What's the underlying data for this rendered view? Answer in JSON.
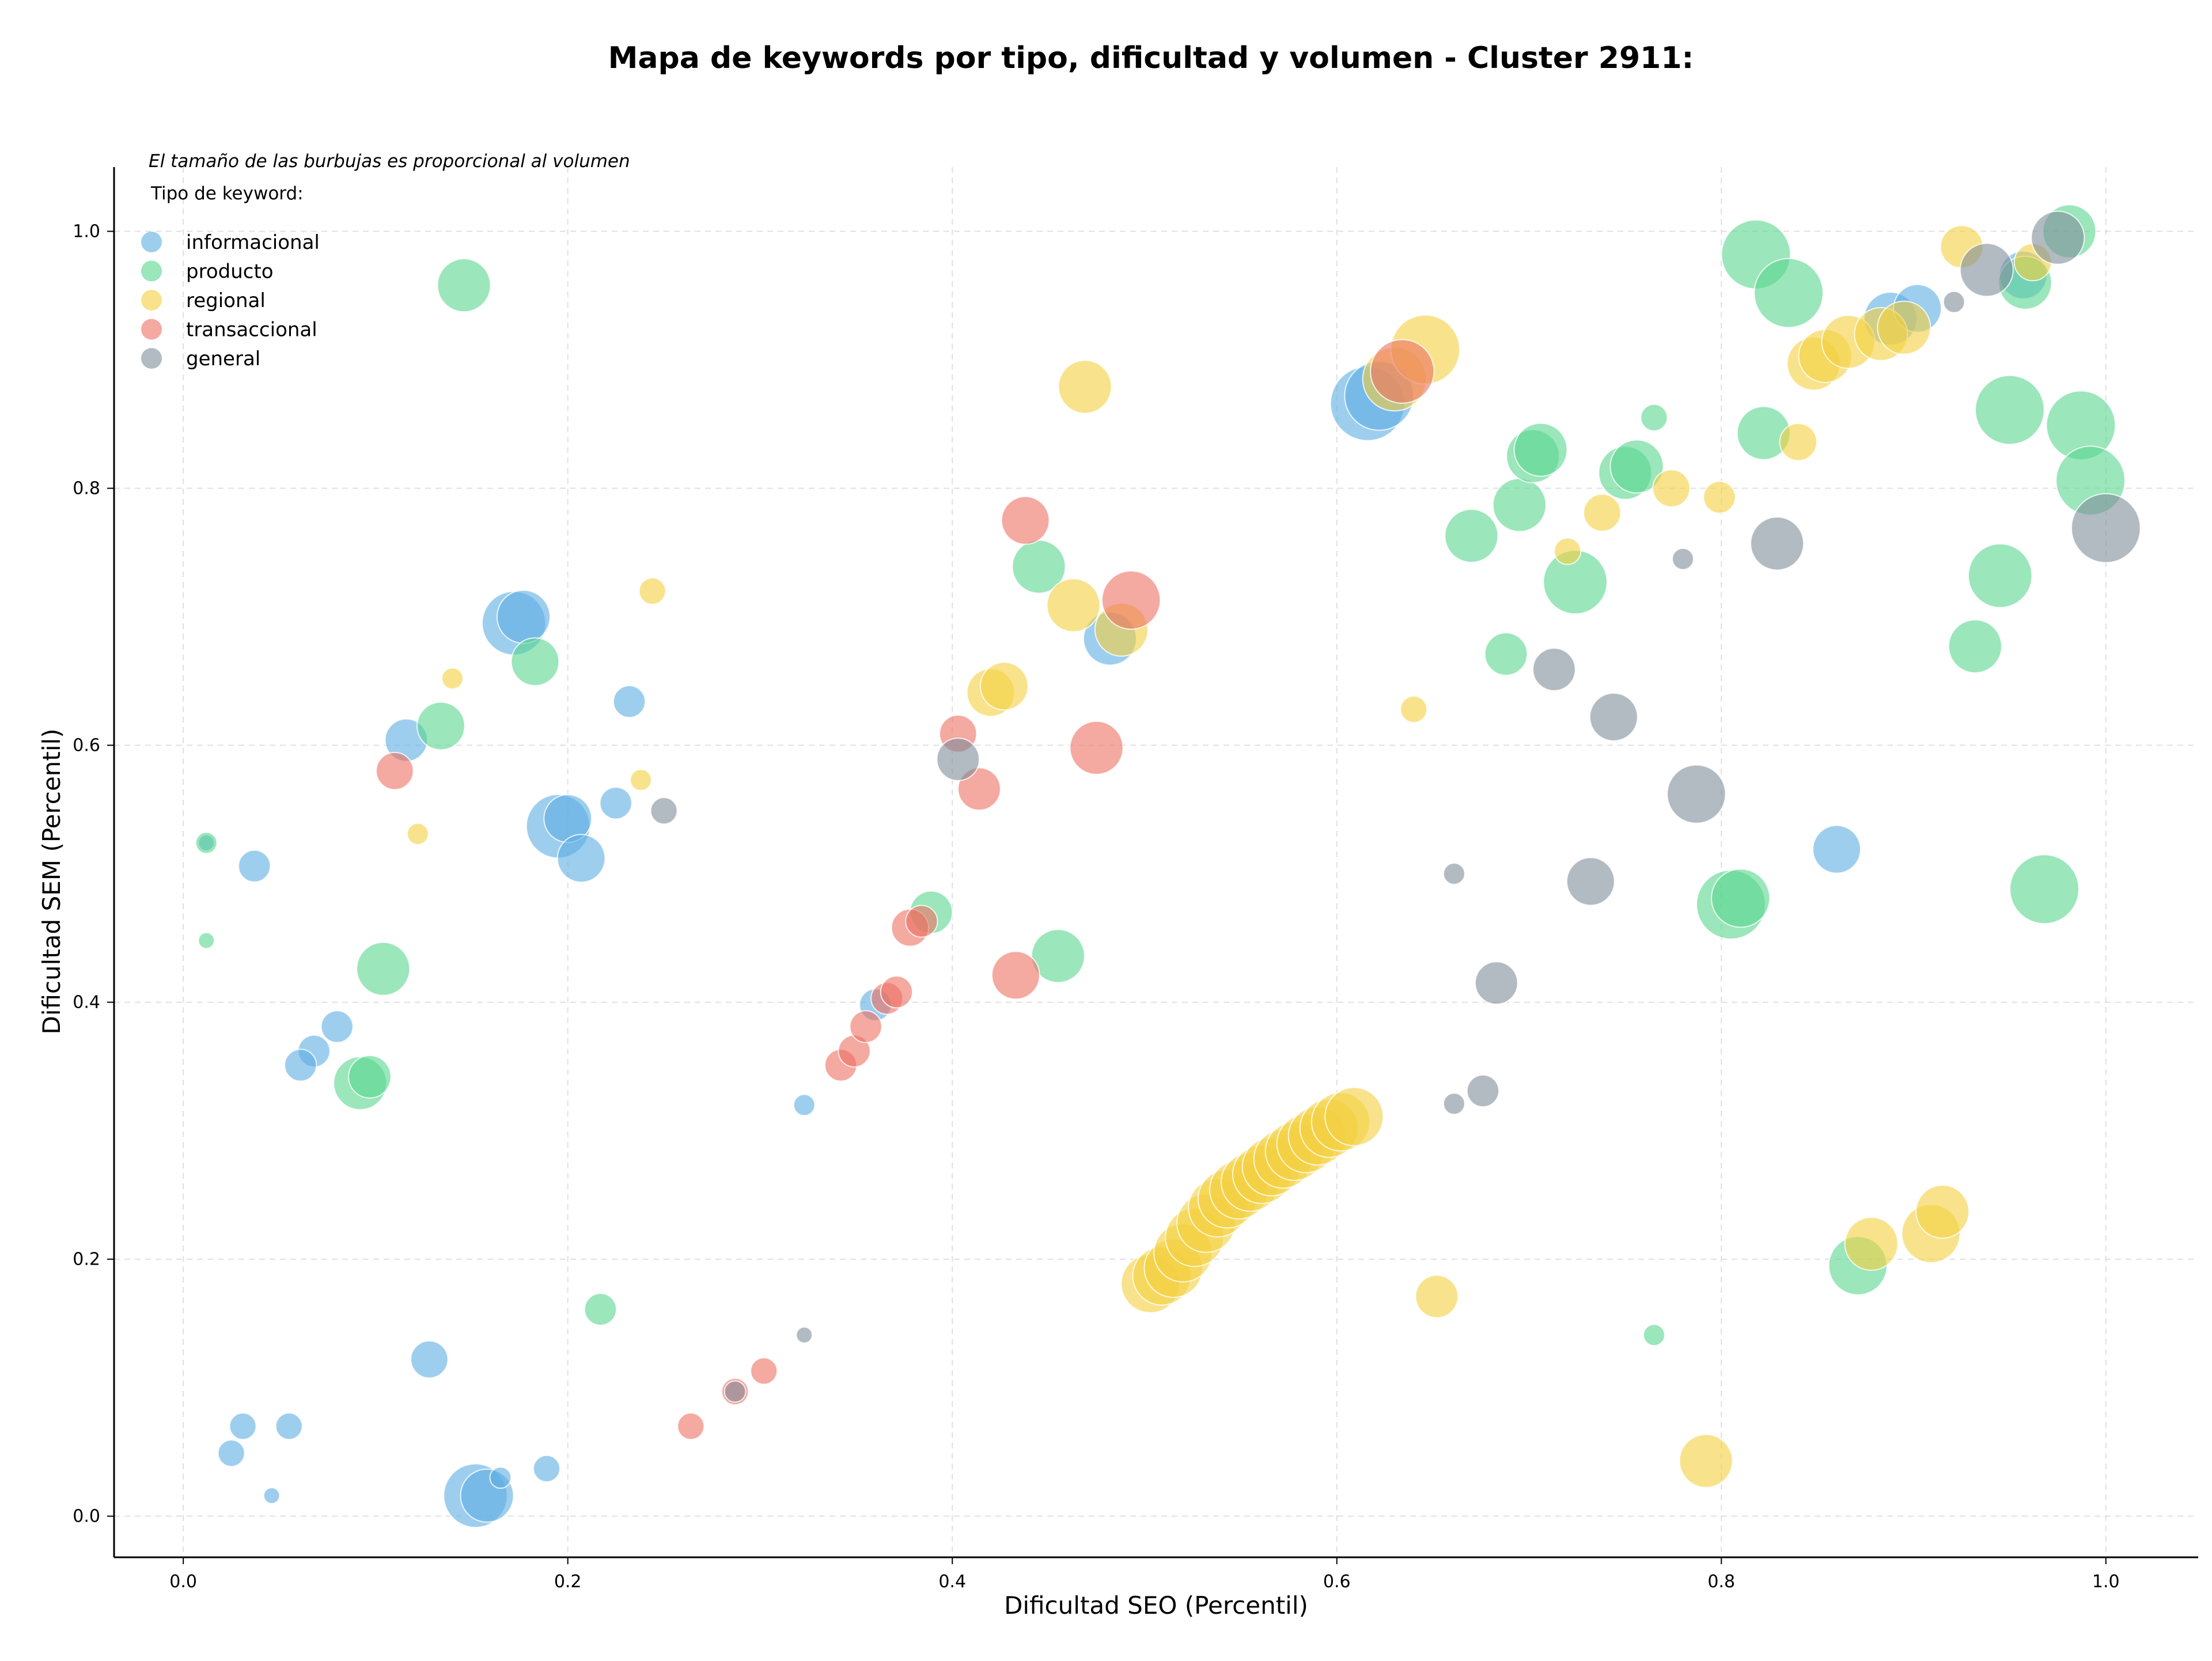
{
  "chart_data": {
    "type": "scatter",
    "title": "Mapa de keywords por tipo, dificultad y volumen - Cluster 2911:",
    "xlabel": "Dificultad SEO (Percentil)",
    "ylabel": "Dificultad SEM (Percentil)",
    "note": "El tamaño de las burbujas es proporcional al volumen",
    "legend_title": "Tipo de keyword:",
    "legend_position": "top-left",
    "xlim": [
      -0.036,
      1.048
    ],
    "ylim": [
      -0.032,
      1.05
    ],
    "xticks": [
      "0.0",
      "0.2",
      "0.4",
      "0.6",
      "0.8",
      "1.0"
    ],
    "yticks": [
      "0.0",
      "0.2",
      "0.4",
      "0.6",
      "0.8",
      "1.0"
    ],
    "grid": true,
    "series": [
      {
        "name": "informacional",
        "color": "#5DADE2",
        "points": [
          [
            0.012,
            0.524,
            3
          ],
          [
            0.037,
            0.506,
            6
          ],
          [
            0.08,
            0.381,
            6
          ],
          [
            0.068,
            0.362,
            6
          ],
          [
            0.061,
            0.351,
            6
          ],
          [
            0.031,
            0.07,
            5
          ],
          [
            0.055,
            0.07,
            5
          ],
          [
            0.025,
            0.049,
            5
          ],
          [
            0.046,
            0.016,
            3
          ],
          [
            0.128,
            0.122,
            7
          ],
          [
            0.152,
            0.016,
            12
          ],
          [
            0.158,
            0.016,
            10
          ],
          [
            0.165,
            0.03,
            4
          ],
          [
            0.189,
            0.037,
            5
          ],
          [
            0.116,
            0.604,
            8
          ],
          [
            0.172,
            0.695,
            12
          ],
          [
            0.177,
            0.7,
            10
          ],
          [
            0.195,
            0.537,
            12
          ],
          [
            0.2,
            0.543,
            9
          ],
          [
            0.207,
            0.512,
            9
          ],
          [
            0.225,
            0.555,
            6
          ],
          [
            0.232,
            0.634,
            6
          ],
          [
            0.323,
            0.32,
            4
          ],
          [
            0.36,
            0.398,
            6
          ],
          [
            0.482,
            0.683,
            10
          ],
          [
            0.616,
            0.866,
            14
          ],
          [
            0.622,
            0.872,
            13
          ],
          [
            0.86,
            0.519,
            9
          ],
          [
            0.888,
            0.932,
            10
          ],
          [
            0.902,
            0.94,
            9
          ],
          [
            0.957,
            0.966,
            9
          ]
        ]
      },
      {
        "name": "producto",
        "color": "#58D68D",
        "points": [
          [
            0.012,
            0.524,
            4
          ],
          [
            0.012,
            0.448,
            3
          ],
          [
            0.092,
            0.337,
            10
          ],
          [
            0.097,
            0.342,
            8
          ],
          [
            0.104,
            0.426,
            10
          ],
          [
            0.134,
            0.615,
            9
          ],
          [
            0.146,
            0.958,
            10
          ],
          [
            0.183,
            0.665,
            9
          ],
          [
            0.217,
            0.161,
            6
          ],
          [
            0.389,
            0.47,
            8
          ],
          [
            0.445,
            0.739,
            10
          ],
          [
            0.455,
            0.436,
            10
          ],
          [
            0.67,
            0.763,
            10
          ],
          [
            0.688,
            0.671,
            8
          ],
          [
            0.695,
            0.787,
            10
          ],
          [
            0.702,
            0.825,
            10
          ],
          [
            0.706,
            0.83,
            10
          ],
          [
            0.724,
            0.727,
            12
          ],
          [
            0.75,
            0.812,
            10
          ],
          [
            0.756,
            0.817,
            10
          ],
          [
            0.765,
            0.855,
            5
          ],
          [
            0.765,
            0.141,
            4
          ],
          [
            0.805,
            0.476,
            13
          ],
          [
            0.81,
            0.481,
            11
          ],
          [
            0.818,
            0.982,
            13
          ],
          [
            0.822,
            0.843,
            10
          ],
          [
            0.835,
            0.952,
            13
          ],
          [
            0.871,
            0.195,
            11
          ],
          [
            0.932,
            0.677,
            10
          ],
          [
            0.945,
            0.732,
            12
          ],
          [
            0.95,
            0.861,
            13
          ],
          [
            0.958,
            0.96,
            10
          ],
          [
            0.968,
            0.488,
            13
          ],
          [
            0.981,
            1.0,
            10
          ],
          [
            0.987,
            0.849,
            13
          ],
          [
            0.992,
            0.806,
            13
          ]
        ]
      },
      {
        "name": "regional",
        "color": "#F4D03F",
        "points": [
          [
            0.122,
            0.531,
            4
          ],
          [
            0.14,
            0.652,
            4
          ],
          [
            0.238,
            0.573,
            4
          ],
          [
            0.244,
            0.72,
            5
          ],
          [
            0.42,
            0.641,
            9
          ],
          [
            0.427,
            0.646,
            9
          ],
          [
            0.463,
            0.709,
            10
          ],
          [
            0.469,
            0.879,
            10
          ],
          [
            0.488,
            0.69,
            10
          ],
          [
            0.503,
            0.181,
            11
          ],
          [
            0.509,
            0.187,
            11
          ],
          [
            0.515,
            0.193,
            11
          ],
          [
            0.52,
            0.205,
            11
          ],
          [
            0.526,
            0.217,
            11
          ],
          [
            0.532,
            0.228,
            11
          ],
          [
            0.538,
            0.24,
            11
          ],
          [
            0.543,
            0.247,
            11
          ],
          [
            0.549,
            0.254,
            11
          ],
          [
            0.555,
            0.26,
            11
          ],
          [
            0.561,
            0.266,
            11
          ],
          [
            0.566,
            0.272,
            11
          ],
          [
            0.572,
            0.278,
            11
          ],
          [
            0.578,
            0.284,
            11
          ],
          [
            0.584,
            0.29,
            11
          ],
          [
            0.59,
            0.296,
            11
          ],
          [
            0.596,
            0.302,
            11
          ],
          [
            0.602,
            0.307,
            11
          ],
          [
            0.609,
            0.311,
            11
          ],
          [
            0.63,
            0.885,
            12
          ],
          [
            0.646,
            0.908,
            13
          ],
          [
            0.64,
            0.628,
            5
          ],
          [
            0.652,
            0.171,
            8
          ],
          [
            0.72,
            0.751,
            5
          ],
          [
            0.738,
            0.781,
            7
          ],
          [
            0.774,
            0.8,
            7
          ],
          [
            0.792,
            0.043,
            10
          ],
          [
            0.799,
            0.793,
            6
          ],
          [
            0.84,
            0.836,
            7
          ],
          [
            0.848,
            0.897,
            10
          ],
          [
            0.854,
            0.903,
            10
          ],
          [
            0.866,
            0.914,
            10
          ],
          [
            0.878,
            0.212,
            10
          ],
          [
            0.883,
            0.92,
            10
          ],
          [
            0.895,
            0.925,
            10
          ],
          [
            0.909,
            0.22,
            11
          ],
          [
            0.915,
            0.237,
            10
          ],
          [
            0.925,
            0.988,
            8
          ],
          [
            0.962,
            0.976,
            7
          ]
        ]
      },
      {
        "name": "transaccional",
        "color": "#EC7063",
        "points": [
          [
            0.11,
            0.58,
            7
          ],
          [
            0.264,
            0.07,
            5
          ],
          [
            0.287,
            0.097,
            5
          ],
          [
            0.302,
            0.113,
            5
          ],
          [
            0.342,
            0.351,
            6
          ],
          [
            0.349,
            0.362,
            6
          ],
          [
            0.355,
            0.381,
            6
          ],
          [
            0.366,
            0.403,
            6
          ],
          [
            0.371,
            0.408,
            6
          ],
          [
            0.378,
            0.458,
            7
          ],
          [
            0.384,
            0.463,
            6
          ],
          [
            0.403,
            0.609,
            7
          ],
          [
            0.414,
            0.566,
            8
          ],
          [
            0.433,
            0.421,
            9
          ],
          [
            0.438,
            0.775,
            9
          ],
          [
            0.475,
            0.598,
            10
          ],
          [
            0.493,
            0.713,
            11
          ],
          [
            0.634,
            0.891,
            12
          ]
        ]
      },
      {
        "name": "general",
        "color": "#7F8C9A",
        "points": [
          [
            0.25,
            0.549,
            5
          ],
          [
            0.323,
            0.141,
            3
          ],
          [
            0.287,
            0.097,
            4
          ],
          [
            0.403,
            0.589,
            8
          ],
          [
            0.661,
            0.5,
            4
          ],
          [
            0.661,
            0.321,
            4
          ],
          [
            0.676,
            0.331,
            6
          ],
          [
            0.683,
            0.415,
            8
          ],
          [
            0.713,
            0.659,
            8
          ],
          [
            0.732,
            0.494,
            9
          ],
          [
            0.744,
            0.622,
            9
          ],
          [
            0.78,
            0.745,
            4
          ],
          [
            0.787,
            0.562,
            11
          ],
          [
            0.829,
            0.757,
            10
          ],
          [
            0.921,
            0.945,
            4
          ],
          [
            0.938,
            0.97,
            10
          ],
          [
            0.975,
            0.995,
            10
          ],
          [
            1.0,
            0.769,
            13
          ]
        ]
      }
    ]
  }
}
